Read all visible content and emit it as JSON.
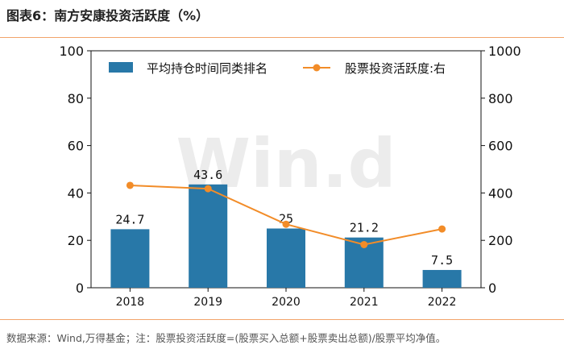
{
  "header": {
    "title": "图表6：南方安康投资活跃度（%）"
  },
  "footer": {
    "source": "数据来源：Wind,万得基金；注：股票投资活跃度=(股票买入总额+股票卖出总额)/股票平均净值。"
  },
  "watermark": "Win.d",
  "colors": {
    "bar": "#2878a8",
    "line": "#f28c28",
    "rule": "#f2a46a"
  },
  "chart_data": {
    "type": "bar",
    "categories": [
      "2018",
      "2019",
      "2020",
      "2021",
      "2022"
    ],
    "series": [
      {
        "name": "平均持仓时间同类排名",
        "type": "bar",
        "axis": "left",
        "values": [
          24.7,
          43.6,
          25,
          21.2,
          7.5
        ],
        "labels": [
          "24.7",
          "43.6",
          "25",
          "21.2",
          "7.5"
        ]
      },
      {
        "name": "股票投资活跃度:右",
        "type": "line",
        "axis": "right",
        "values": [
          432,
          418,
          268,
          182,
          248
        ]
      }
    ],
    "y_left": {
      "lim": [
        0,
        100
      ],
      "ticks": [
        "0",
        "20",
        "40",
        "60",
        "80",
        "100"
      ]
    },
    "y_right": {
      "lim": [
        0,
        1000
      ],
      "ticks": [
        "0",
        "200",
        "400",
        "600",
        "800",
        "1000"
      ]
    },
    "legend_position": "top"
  }
}
